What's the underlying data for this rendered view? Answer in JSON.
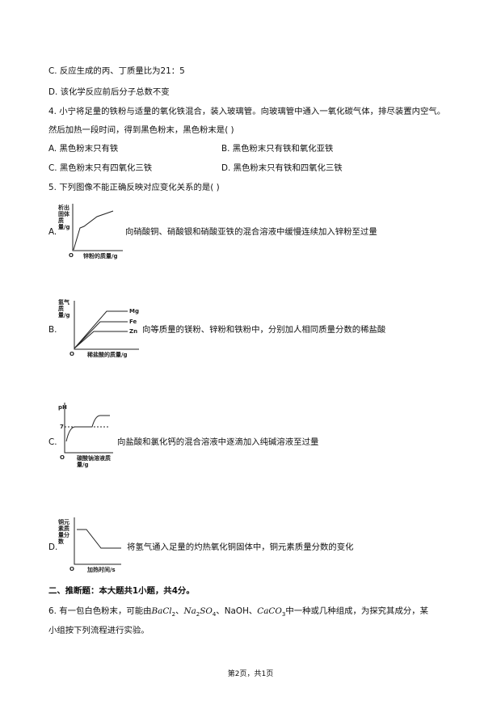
{
  "lines": {
    "option_c_prev": "C. 反应生成的丙、丁质量比为21：5",
    "option_d_prev": "D. 该化学反应前后分子总数不变"
  },
  "question4": {
    "stem_1": "4. 小宁将足量的铁粉与适量的氧化铁混合，装入玻璃管。向玻璃管中通入一氧化碳气体，排尽装置内空气。",
    "stem_2": "然后加热一段时间，得到黑色粉末，黑色粉末是(    )",
    "options": [
      "A. 黑色粉末只有铁",
      "B. 黑色粉末只有铁和氧化亚铁",
      "C. 黑色粉末只有四氧化三铁",
      "D. 黑色粉末只有铁和四氧化三铁"
    ]
  },
  "question5": {
    "stem": "5. 下列图像不能正确反映对应变化关系的是(    )",
    "options": [
      {
        "letter": "A.",
        "text": "向硝酸铜、硝酸银和硝酸亚铁的混合溶液中缓慢连续加入锌粉至过量",
        "y_label": "析出固体质量/g",
        "x_label": "锌粉的质量/g",
        "origin": "O"
      },
      {
        "letter": "B.",
        "text": "向等质量的镁粉、锌粉和铁粉中，分别加人相同质量分数的稀盐酸",
        "y_label": "氢气质量/g",
        "x_label": "稀盐酸的质量/g",
        "origin": "O",
        "curves": [
          "Mg",
          "Fe",
          "Zn"
        ]
      },
      {
        "letter": "C.",
        "text": "向盐酸和氯化钙的混合溶液中逐滴加入纯碱溶液至过量",
        "y_label": "pH",
        "x_label": "碳酸钠溶液质量/g",
        "origin": "O",
        "mark": "7"
      },
      {
        "letter": "D.",
        "text": "将氢气通入足量的灼热氧化铜固体中，铜元素质量分数的变化",
        "y_label": "铜元素质量分数",
        "x_label": "加热时间/s",
        "origin": "O"
      }
    ]
  },
  "section2": {
    "title": "二、推断题：本大题共1小题，共4分。"
  },
  "question6": {
    "line_1": [
      {
        "text": "6. 有一包白色粉末，可能由"
      },
      {
        "text": "BaCl",
        "sub": "2"
      },
      {
        "text": "、"
      },
      {
        "text": "Na",
        "sub": "2"
      },
      {
        "text": "SO",
        "sub": "4"
      },
      {
        "text": "、NaOH、"
      },
      {
        "text": "CaCO",
        "sub": "3"
      },
      {
        "text": "中一种或几种组成，为探究其成分，某"
      }
    ],
    "line_2": "小组按下列流程进行实验。"
  },
  "footer": {
    "page": "第2页，共1页"
  }
}
